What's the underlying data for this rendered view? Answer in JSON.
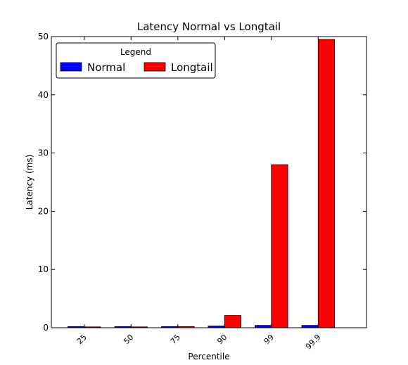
{
  "chart_data": {
    "type": "bar",
    "title": "Latency Normal vs Longtail",
    "xlabel": "Percentile",
    "ylabel": "Latency (ms)",
    "categories": [
      "25",
      "50",
      "75",
      "90",
      "99",
      "99.9"
    ],
    "series": [
      {
        "name": "Normal",
        "color": "#0000ff",
        "values": [
          0.2,
          0.2,
          0.2,
          0.3,
          0.4,
          0.4
        ]
      },
      {
        "name": "Longtail",
        "color": "#ff0000",
        "values": [
          0.1,
          0.1,
          0.2,
          2.1,
          28.0,
          49.5
        ]
      }
    ],
    "ylim": [
      0,
      50
    ],
    "yticks": [
      0,
      10,
      20,
      30,
      40,
      50
    ],
    "grid": false,
    "legend": {
      "title": "Legend",
      "placement": "top-left"
    }
  }
}
